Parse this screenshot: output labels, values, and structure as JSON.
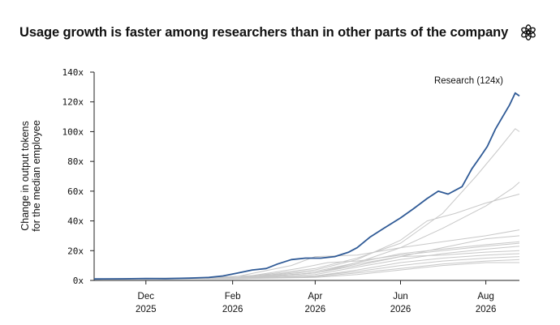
{
  "header": {
    "title": "Usage growth is faster among researchers than in other parts of the company",
    "logo_icon": "openai-logo-icon"
  },
  "chart_data": {
    "type": "line",
    "title": "Usage growth is faster among researchers than in other parts of the company",
    "ylabel_lines": [
      "Change in output tokens",
      "for the median employee"
    ],
    "xlabel": "",
    "ylim": [
      0,
      140
    ],
    "y_ticks": [
      "0x",
      "20x",
      "40x",
      "60x",
      "80x",
      "100x",
      "120x",
      "140x"
    ],
    "x_ticks": [
      {
        "month": "Dec",
        "year": "2025"
      },
      {
        "month": "Feb",
        "year": "2026"
      },
      {
        "month": "Apr",
        "year": "2026"
      },
      {
        "month": "Jun",
        "year": "2026"
      },
      {
        "month": "Aug",
        "year": "2026"
      }
    ],
    "x_range": [
      "2025-10-25",
      "2026-08-25"
    ],
    "grid": false,
    "highlight_color": "#2f5a96",
    "other_color": "#c8c8c8",
    "annotation": "Research (124x)",
    "series": [
      {
        "name": "Research",
        "highlight": true,
        "points": [
          [
            "2025-10-25",
            1
          ],
          [
            "2025-11-15",
            1.1
          ],
          [
            "2025-12-01",
            1.3
          ],
          [
            "2025-12-15",
            1.2
          ],
          [
            "2026-01-01",
            1.5
          ],
          [
            "2026-01-15",
            2
          ],
          [
            "2026-01-25",
            3
          ],
          [
            "2026-02-05",
            5
          ],
          [
            "2026-02-15",
            7
          ],
          [
            "2026-02-25",
            8
          ],
          [
            "2026-03-05",
            11
          ],
          [
            "2026-03-15",
            14
          ],
          [
            "2026-03-25",
            15
          ],
          [
            "2026-04-05",
            15
          ],
          [
            "2026-04-15",
            16
          ],
          [
            "2026-04-25",
            19
          ],
          [
            "2026-05-01",
            22
          ],
          [
            "2026-05-10",
            29
          ],
          [
            "2026-05-20",
            35
          ],
          [
            "2026-06-01",
            42
          ],
          [
            "2026-06-10",
            48
          ],
          [
            "2026-06-20",
            55
          ],
          [
            "2026-06-28",
            60
          ],
          [
            "2026-07-05",
            58
          ],
          [
            "2026-07-15",
            63
          ],
          [
            "2026-07-22",
            75
          ],
          [
            "2026-07-28",
            83
          ],
          [
            "2026-08-02",
            90
          ],
          [
            "2026-08-08",
            102
          ],
          [
            "2026-08-13",
            110
          ],
          [
            "2026-08-18",
            118
          ],
          [
            "2026-08-22",
            126
          ],
          [
            "2026-08-25",
            124
          ]
        ]
      },
      {
        "highlight": false,
        "points": [
          [
            "2025-10-25",
            1
          ],
          [
            "2026-01-01",
            1.2
          ],
          [
            "2026-02-15",
            3
          ],
          [
            "2026-04-01",
            8
          ],
          [
            "2026-05-01",
            15
          ],
          [
            "2026-06-01",
            25
          ],
          [
            "2026-07-01",
            45
          ],
          [
            "2026-07-25",
            70
          ],
          [
            "2026-08-10",
            88
          ],
          [
            "2026-08-22",
            102
          ],
          [
            "2026-08-25",
            100
          ]
        ]
      },
      {
        "highlight": false,
        "points": [
          [
            "2025-10-25",
            1
          ],
          [
            "2026-01-01",
            1.1
          ],
          [
            "2026-02-15",
            2
          ],
          [
            "2026-04-01",
            5
          ],
          [
            "2026-05-01",
            12
          ],
          [
            "2026-06-01",
            22
          ],
          [
            "2026-07-01",
            35
          ],
          [
            "2026-08-01",
            50
          ],
          [
            "2026-08-20",
            62
          ],
          [
            "2026-08-25",
            66
          ]
        ]
      },
      {
        "highlight": false,
        "points": [
          [
            "2025-10-25",
            1
          ],
          [
            "2026-01-01",
            1.2
          ],
          [
            "2026-03-01",
            4
          ],
          [
            "2026-04-01",
            7
          ],
          [
            "2026-05-01",
            14
          ],
          [
            "2026-06-01",
            27
          ],
          [
            "2026-06-20",
            40
          ],
          [
            "2026-07-10",
            45
          ],
          [
            "2026-08-01",
            52
          ],
          [
            "2026-08-25",
            58
          ]
        ]
      },
      {
        "highlight": false,
        "points": [
          [
            "2025-10-25",
            1
          ],
          [
            "2026-02-01",
            2
          ],
          [
            "2026-03-15",
            10
          ],
          [
            "2026-04-01",
            16
          ],
          [
            "2026-05-01",
            17
          ],
          [
            "2026-06-01",
            22
          ],
          [
            "2026-07-01",
            26
          ],
          [
            "2026-08-01",
            30
          ],
          [
            "2026-08-25",
            34
          ]
        ]
      },
      {
        "highlight": false,
        "points": [
          [
            "2025-10-25",
            1
          ],
          [
            "2026-02-01",
            1.5
          ],
          [
            "2026-04-01",
            5
          ],
          [
            "2026-05-01",
            10
          ],
          [
            "2026-06-01",
            16
          ],
          [
            "2026-07-01",
            22
          ],
          [
            "2026-08-01",
            28
          ],
          [
            "2026-08-25",
            30
          ]
        ]
      },
      {
        "highlight": false,
        "points": [
          [
            "2025-10-25",
            1
          ],
          [
            "2026-02-01",
            1.5
          ],
          [
            "2026-04-01",
            6
          ],
          [
            "2026-05-01",
            12
          ],
          [
            "2026-06-01",
            18
          ],
          [
            "2026-07-01",
            21
          ],
          [
            "2026-08-01",
            24
          ],
          [
            "2026-08-25",
            26
          ]
        ]
      },
      {
        "highlight": false,
        "points": [
          [
            "2025-10-25",
            1
          ],
          [
            "2026-02-01",
            1.3
          ],
          [
            "2026-04-01",
            4
          ],
          [
            "2026-05-01",
            9
          ],
          [
            "2026-06-01",
            14
          ],
          [
            "2026-07-01",
            18
          ],
          [
            "2026-08-01",
            21
          ],
          [
            "2026-08-25",
            23
          ]
        ]
      },
      {
        "highlight": false,
        "points": [
          [
            "2025-10-25",
            1
          ],
          [
            "2026-02-01",
            1.3
          ],
          [
            "2026-04-01",
            5
          ],
          [
            "2026-05-01",
            11
          ],
          [
            "2026-06-01",
            16
          ],
          [
            "2026-07-01",
            17
          ],
          [
            "2026-08-01",
            19
          ],
          [
            "2026-08-25",
            20
          ]
        ]
      },
      {
        "highlight": false,
        "points": [
          [
            "2025-10-25",
            1
          ],
          [
            "2026-02-01",
            1.2
          ],
          [
            "2026-04-01",
            3
          ],
          [
            "2026-05-01",
            7
          ],
          [
            "2026-06-01",
            12
          ],
          [
            "2026-07-01",
            15
          ],
          [
            "2026-08-01",
            17
          ],
          [
            "2026-08-25",
            18
          ]
        ]
      },
      {
        "highlight": false,
        "points": [
          [
            "2025-10-25",
            1
          ],
          [
            "2026-02-01",
            1.2
          ],
          [
            "2026-04-01",
            3
          ],
          [
            "2026-05-01",
            6
          ],
          [
            "2026-06-01",
            10
          ],
          [
            "2026-07-01",
            13
          ],
          [
            "2026-08-01",
            15
          ],
          [
            "2026-08-25",
            16
          ]
        ]
      },
      {
        "highlight": false,
        "points": [
          [
            "2025-10-25",
            1
          ],
          [
            "2026-02-01",
            1.1
          ],
          [
            "2026-04-01",
            2.5
          ],
          [
            "2026-05-01",
            5
          ],
          [
            "2026-06-01",
            8
          ],
          [
            "2026-07-01",
            11
          ],
          [
            "2026-08-01",
            13
          ],
          [
            "2026-08-25",
            14
          ]
        ]
      },
      {
        "highlight": false,
        "points": [
          [
            "2025-10-25",
            1
          ],
          [
            "2026-02-01",
            1.1
          ],
          [
            "2026-04-01",
            2
          ],
          [
            "2026-05-01",
            4
          ],
          [
            "2026-06-01",
            7
          ],
          [
            "2026-07-01",
            10
          ],
          [
            "2026-08-01",
            12
          ],
          [
            "2026-08-25",
            12
          ]
        ]
      },
      {
        "highlight": false,
        "points": [
          [
            "2025-10-25",
            1
          ],
          [
            "2026-02-01",
            1.2
          ],
          [
            "2026-03-20",
            8
          ],
          [
            "2026-04-10",
            12
          ],
          [
            "2026-05-01",
            13
          ],
          [
            "2026-06-01",
            17
          ],
          [
            "2026-07-01",
            20
          ],
          [
            "2026-08-01",
            23
          ],
          [
            "2026-08-25",
            25
          ]
        ]
      }
    ]
  }
}
